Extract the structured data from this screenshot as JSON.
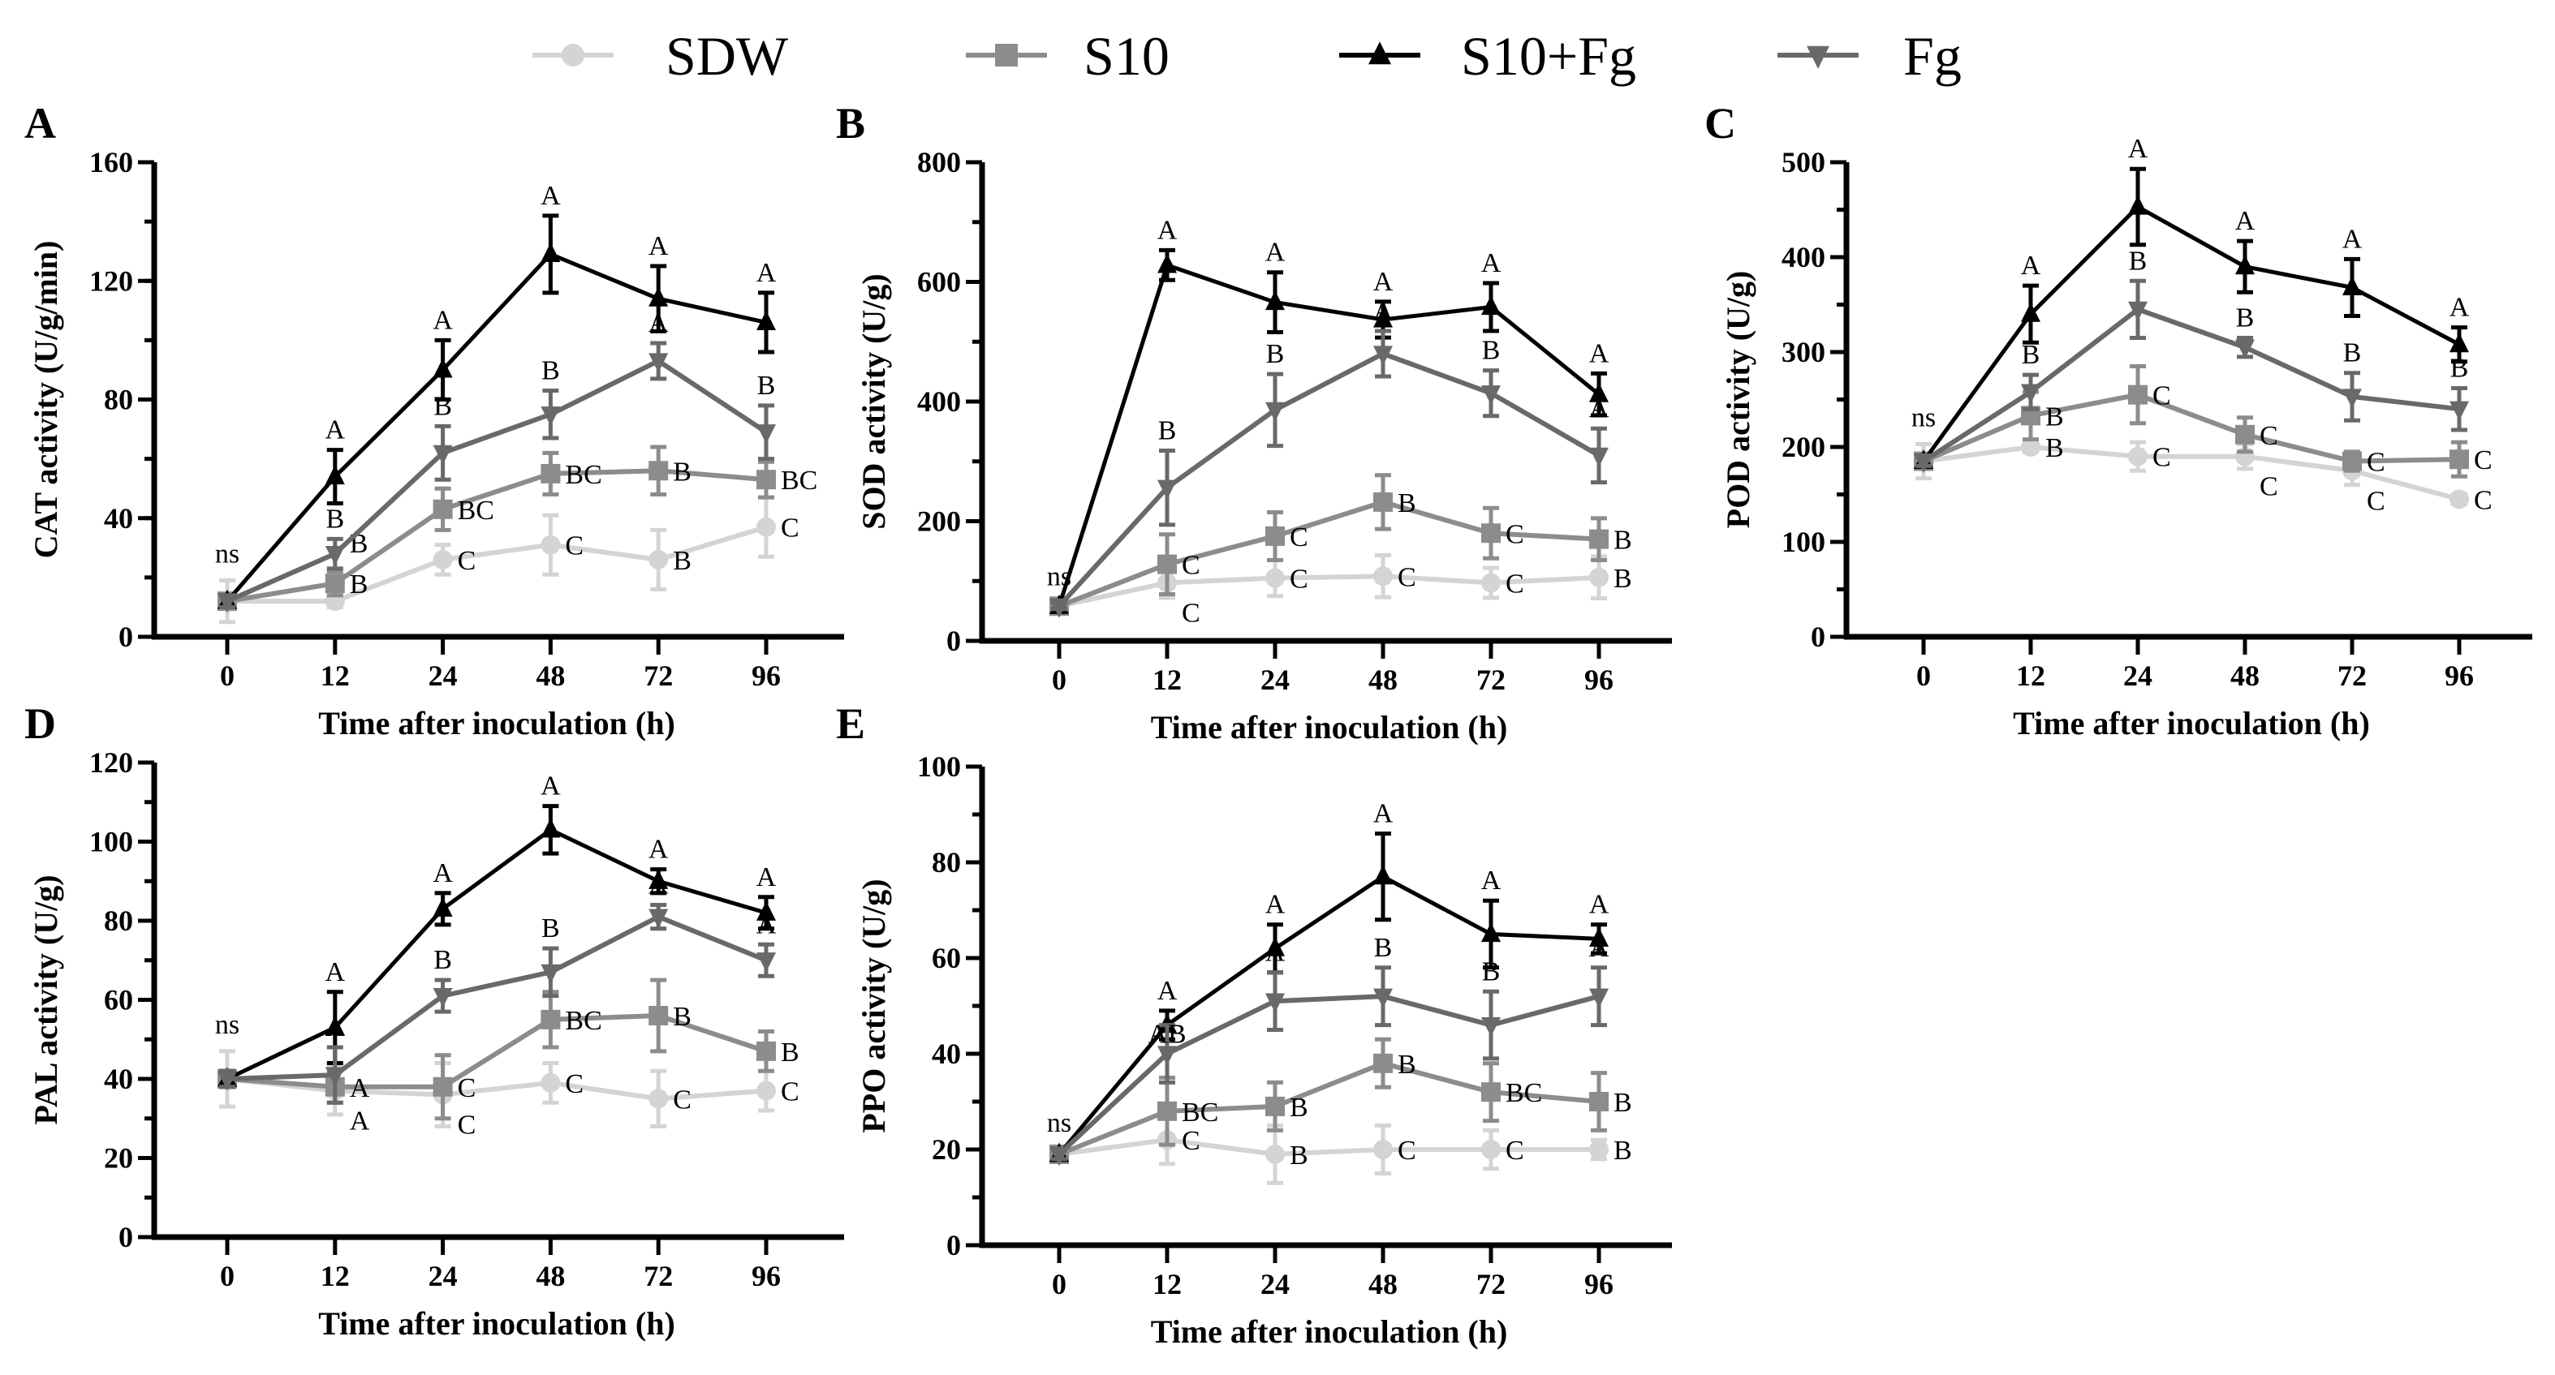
{
  "legend": [
    {
      "name": "SDW",
      "color": "#d4d4d4",
      "marker": "circle"
    },
    {
      "name": "S10",
      "color": "#8c8c8c",
      "marker": "square"
    },
    {
      "name": "S10+Fg",
      "color": "#000000",
      "marker": "triangle-up"
    },
    {
      "name": "Fg",
      "color": "#696969",
      "marker": "triangle-down"
    }
  ],
  "chart_data": [
    {
      "type": "line",
      "panel": "A",
      "xlabel": "Time after inoculation (h)",
      "ylabel": "CAT activity (U/g/min)",
      "x": [
        0,
        12,
        24,
        48,
        72,
        96
      ],
      "ylim": [
        0,
        160
      ],
      "yticks": [
        0,
        40,
        80,
        120,
        160
      ],
      "yminor": 20,
      "ns_label": "ns",
      "series": [
        {
          "name": "SDW",
          "values": [
            12,
            12,
            26,
            31,
            26,
            37
          ],
          "errors": [
            7,
            2,
            5,
            10,
            10,
            10
          ],
          "letters": [
            "",
            "B",
            "C",
            "C",
            "B",
            "C"
          ]
        },
        {
          "name": "S10",
          "values": [
            12,
            18,
            43,
            55,
            56,
            53
          ],
          "errors": [
            2,
            4,
            7,
            7,
            8,
            6
          ],
          "letters": [
            "",
            "B",
            "BC",
            "BC",
            "B",
            "BC"
          ]
        },
        {
          "name": "S10+Fg",
          "values": [
            12,
            54,
            90,
            129,
            114,
            106
          ],
          "errors": [
            2,
            9,
            10,
            13,
            11,
            10
          ],
          "letters": [
            "",
            "A",
            "A",
            "A",
            "A",
            "A"
          ]
        },
        {
          "name": "Fg",
          "values": [
            12,
            28,
            62,
            75,
            93,
            69
          ],
          "errors": [
            2,
            5,
            9,
            8,
            6,
            9
          ],
          "letters": [
            "",
            "B",
            "B",
            "B",
            "A",
            "B"
          ]
        }
      ]
    },
    {
      "type": "line",
      "panel": "B",
      "xlabel": "Time after inoculation (h)",
      "ylabel": "SOD activity (U/g)",
      "x": [
        0,
        12,
        24,
        48,
        72,
        96
      ],
      "ylim": [
        0,
        800
      ],
      "yticks": [
        0,
        200,
        400,
        600,
        800
      ],
      "yminor": 100,
      "ns_label": "ns",
      "series": [
        {
          "name": "SDW",
          "values": [
            58,
            97,
            105,
            108,
            97,
            106
          ],
          "errors": [
            5,
            25,
            30,
            35,
            25,
            35
          ],
          "letters": [
            "",
            "C",
            "C",
            "C",
            "C",
            "B"
          ]
        },
        {
          "name": "S10",
          "values": [
            58,
            128,
            175,
            232,
            180,
            170
          ],
          "errors": [
            5,
            50,
            40,
            45,
            42,
            35
          ],
          "letters": [
            "",
            "C",
            "C",
            "B",
            "C",
            "B"
          ]
        },
        {
          "name": "S10+Fg",
          "values": [
            58,
            628,
            566,
            537,
            558,
            412
          ],
          "errors": [
            5,
            25,
            50,
            30,
            40,
            35
          ],
          "letters": [
            "",
            "A",
            "A",
            "A",
            "A",
            "A"
          ]
        },
        {
          "name": "Fg",
          "values": [
            58,
            256,
            386,
            480,
            414,
            310
          ],
          "errors": [
            5,
            62,
            60,
            38,
            38,
            45
          ],
          "letters": [
            "",
            "B",
            "B",
            "A",
            "B",
            "A"
          ]
        }
      ]
    },
    {
      "type": "line",
      "panel": "C",
      "xlabel": "Time after inoculation (h)",
      "ylabel": "POD activity (U/g)",
      "x": [
        0,
        12,
        24,
        48,
        72,
        96
      ],
      "ylim": [
        0,
        500
      ],
      "yticks": [
        0,
        100,
        200,
        300,
        400,
        500
      ],
      "yminor": 50,
      "ns_label": "ns",
      "series": [
        {
          "name": "SDW",
          "values": [
            185,
            200,
            190,
            190,
            175,
            145
          ],
          "errors": [
            18,
            5,
            15,
            13,
            15,
            5
          ],
          "letters": [
            "",
            "B",
            "C",
            "C",
            "C",
            "C"
          ]
        },
        {
          "name": "S10",
          "values": [
            185,
            233,
            255,
            213,
            185,
            187
          ],
          "errors": [
            5,
            25,
            30,
            18,
            10,
            18
          ],
          "letters": [
            "",
            "B",
            "C",
            "C",
            "C",
            "C"
          ]
        },
        {
          "name": "S10+Fg",
          "values": [
            185,
            340,
            453,
            390,
            368,
            308
          ],
          "errors": [
            5,
            30,
            40,
            27,
            30,
            18
          ],
          "letters": [
            "",
            "A",
            "A",
            "A",
            "A",
            "A"
          ]
        },
        {
          "name": "Fg",
          "values": [
            185,
            258,
            345,
            305,
            253,
            240
          ],
          "errors": [
            5,
            18,
            30,
            10,
            25,
            22
          ],
          "letters": [
            "",
            "B",
            "B",
            "B",
            "B",
            "B"
          ]
        }
      ]
    },
    {
      "type": "line",
      "panel": "D",
      "xlabel": "Time after inoculation (h)",
      "ylabel": "PAL activity (U/g)",
      "x": [
        0,
        12,
        24,
        48,
        72,
        96
      ],
      "ylim": [
        0,
        120
      ],
      "yticks": [
        0,
        20,
        40,
        60,
        80,
        100,
        120
      ],
      "yminor": 10,
      "ns_label": "ns",
      "series": [
        {
          "name": "SDW",
          "values": [
            40,
            37,
            36,
            39,
            35,
            37
          ],
          "errors": [
            7,
            6,
            8,
            5,
            7,
            5
          ],
          "letters": [
            "",
            "A",
            "C",
            "C",
            "C",
            "C"
          ]
        },
        {
          "name": "S10",
          "values": [
            40,
            38,
            38,
            55,
            56,
            47
          ],
          "errors": [
            2,
            4,
            8,
            7,
            9,
            5
          ],
          "letters": [
            "",
            "A",
            "C",
            "BC",
            "B",
            "B"
          ]
        },
        {
          "name": "S10+Fg",
          "values": [
            40,
            53,
            83,
            103,
            90,
            82
          ],
          "errors": [
            2,
            9,
            4,
            6,
            3,
            4
          ],
          "letters": [
            "",
            "A",
            "A",
            "A",
            "A",
            "A"
          ]
        },
        {
          "name": "Fg",
          "values": [
            40,
            41,
            61,
            67,
            81,
            70
          ],
          "errors": [
            2,
            7,
            4,
            6,
            3,
            4
          ],
          "letters": [
            "",
            "A",
            "B",
            "B",
            "A",
            "A"
          ]
        }
      ]
    },
    {
      "type": "line",
      "panel": "E",
      "xlabel": "Time after inoculation (h)",
      "ylabel": "PPO activity (U/g)",
      "x": [
        0,
        12,
        24,
        48,
        72,
        96
      ],
      "ylim": [
        0,
        100
      ],
      "yticks": [
        0,
        20,
        40,
        60,
        80,
        100
      ],
      "yminor": 10,
      "ns_label": "ns",
      "series": [
        {
          "name": "SDW",
          "values": [
            19,
            22,
            19,
            20,
            20,
            20
          ],
          "errors": [
            1,
            5,
            6,
            5,
            4,
            2
          ],
          "letters": [
            "",
            "C",
            "B",
            "C",
            "C",
            "B"
          ]
        },
        {
          "name": "S10",
          "values": [
            19,
            28,
            29,
            38,
            32,
            30
          ],
          "errors": [
            1,
            7,
            5,
            5,
            6,
            6
          ],
          "letters": [
            "",
            "BC",
            "B",
            "B",
            "BC",
            "B"
          ]
        },
        {
          "name": "S10+Fg",
          "values": [
            19,
            46,
            62,
            77,
            65,
            64
          ],
          "errors": [
            1,
            3,
            5,
            9,
            7,
            3
          ],
          "letters": [
            "",
            "A",
            "A",
            "A",
            "A",
            "A"
          ]
        },
        {
          "name": "Fg",
          "values": [
            19,
            40,
            51,
            52,
            46,
            52
          ],
          "errors": [
            1,
            6,
            6,
            6,
            7,
            6
          ],
          "letters": [
            "",
            "AB",
            "A",
            "B",
            "B",
            "A"
          ]
        }
      ]
    }
  ]
}
